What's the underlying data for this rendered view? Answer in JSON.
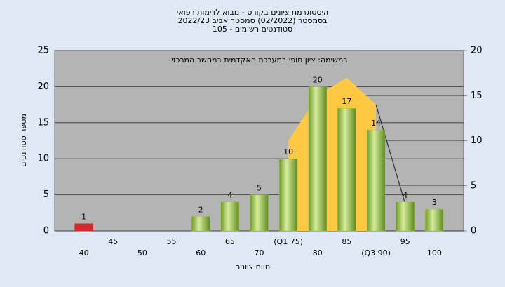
{
  "chart_data": {
    "type": "bar",
    "title": "היסטוגרמת ציונים בקורס - מבוא לדימות רפואי",
    "subtitle": "בסמסטר  (02/2022)  סמסטר אביב 2022/23",
    "subtitle2": "סטודנטים רשומים - 105",
    "annotation": "במשימה: ציון סופי במערכת האקדמית במחשב המרכזי",
    "y_label": "מספר סטודנטים",
    "x_label": "טווח ציונים",
    "categories": [
      "40",
      "45",
      "50",
      "55",
      "60",
      "65",
      "70",
      "(Q1 75)",
      "80",
      "85",
      "(Q3 90)",
      "95",
      "100"
    ],
    "series": [
      {
        "values": [
          1,
          0,
          0,
          0,
          2,
          4,
          5,
          10,
          20,
          17,
          14,
          4,
          3
        ],
        "colors": [
          "#d42a2a",
          "#9cc24a",
          "#9cc24a",
          "#9cc24a",
          "#9cc24a",
          "#9cc24a",
          "#9cc24a",
          "#9cc24a",
          "#9cc24a",
          "#9cc24a",
          "#9cc24a",
          "#9cc24a",
          "#9cc24a"
        ]
      },
      {
        "type": "area",
        "axis": "y2",
        "color": "#ffc845",
        "values": [
          null,
          null,
          null,
          null,
          null,
          null,
          null,
          10,
          15,
          17,
          14,
          null,
          null
        ]
      },
      {
        "type": "line",
        "axis": "y2",
        "color": "#333333",
        "values": [
          null,
          null,
          null,
          null,
          null,
          null,
          null,
          null,
          null,
          null,
          14,
          3,
          null
        ]
      }
    ],
    "ylim": [
      0,
      25
    ],
    "yticks": [
      0,
      5,
      10,
      15,
      20,
      25
    ],
    "y2lim": [
      0,
      20
    ],
    "y2ticks": [
      0,
      5,
      10,
      15,
      20
    ],
    "background": "#b4b4b4",
    "grid": true
  }
}
